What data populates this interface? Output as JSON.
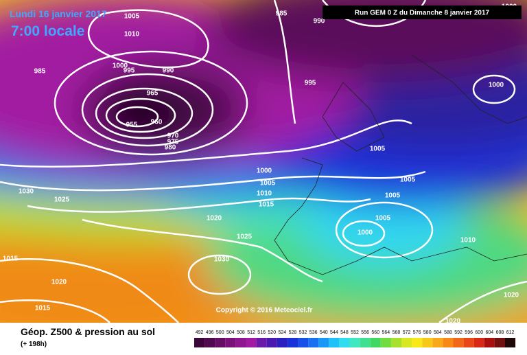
{
  "header": {
    "date": "Lundi 16 janvier 2017",
    "time": "7:00 locale",
    "run": "Run GEM 0 Z du Dimanche 8 janvier 2017"
  },
  "isobars": [
    "1000",
    "1005",
    "1010",
    "1000",
    "995",
    "990",
    "985",
    "985",
    "990",
    "995",
    "1000",
    "965",
    "955",
    "960",
    "970",
    "975",
    "980",
    "1005",
    "1000",
    "1005",
    "1005",
    "1010",
    "1005",
    "1015",
    "1030",
    "1025",
    "1020",
    "1025",
    "1005",
    "1000",
    "1010",
    "1015",
    "1030",
    "1020",
    "1015",
    "1020",
    "1020"
  ],
  "copyright": "Copyright © 2016 Meteociel.fr",
  "footer": {
    "title": "Géop. Z500 & pression au sol",
    "lead": "(+ 198h)"
  },
  "legend": {
    "levels": [
      492,
      496,
      500,
      504,
      508,
      512,
      516,
      520,
      524,
      528,
      532,
      536,
      540,
      544,
      548,
      552,
      556,
      560,
      564,
      568,
      572,
      576,
      580,
      584,
      588,
      592,
      596,
      600,
      604,
      608,
      612
    ],
    "colors": [
      "#3c063c",
      "#500a50",
      "#640e64",
      "#7a127a",
      "#8e168e",
      "#a21aa2",
      "#6a1aa8",
      "#4a1ab0",
      "#2a20c0",
      "#1a30d8",
      "#1a50e8",
      "#1a70f0",
      "#1a98f8",
      "#20c0f8",
      "#30dcf0",
      "#40e8c0",
      "#40e090",
      "#40d860",
      "#70dc40",
      "#a8e030",
      "#d8e820",
      "#f8e818",
      "#f8c818",
      "#f8a818",
      "#f88818",
      "#f06818",
      "#e84818",
      "#d82818",
      "#a81010",
      "#701010",
      "#200808"
    ]
  }
}
